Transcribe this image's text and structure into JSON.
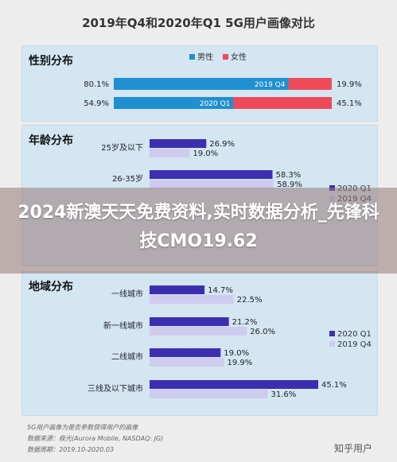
{
  "page_title": "2019年Q4和2020年Q1 5G用户画像对比",
  "colors": {
    "male": "#1f8fd0",
    "female": "#ef4a5a",
    "q1_2020": "#3b2fb0",
    "q4_2019": "#cfcbef",
    "panel_bg": "#d3e6f2"
  },
  "chart_data": [
    {
      "type": "bar",
      "title": "性别分布",
      "categories": [
        "2019 Q4",
        "2020 Q1"
      ],
      "series": [
        {
          "name": "男性",
          "values": [
            80.1,
            54.9
          ]
        },
        {
          "name": "女性",
          "values": [
            19.9,
            45.1
          ]
        }
      ],
      "value_labels": {
        "男性": [
          "80.1%",
          "54.9%"
        ],
        "女性": [
          "19.9%",
          "45.1%"
        ]
      },
      "stacked": true,
      "legend": "top"
    },
    {
      "type": "bar",
      "title": "年龄分布",
      "categories": [
        "25岁及以下",
        "26-35岁"
      ],
      "series": [
        {
          "name": "2020 Q1",
          "values": [
            26.9,
            58.3
          ]
        },
        {
          "name": "2019 Q4",
          "values": [
            19.0,
            58.9
          ]
        }
      ],
      "value_labels": {
        "2020 Q1": [
          "26.9%",
          "58.3%"
        ],
        "2019 Q4": [
          "19.0%",
          "58.9%"
        ]
      },
      "legend": "right"
    },
    {
      "type": "bar",
      "title": "地域分布",
      "categories": [
        "一线城市",
        "新一线城市",
        "二线城市",
        "三线及以下城市"
      ],
      "series": [
        {
          "name": "2020 Q1",
          "values": [
            14.7,
            21.2,
            19.0,
            45.1
          ]
        },
        {
          "name": "2019 Q4",
          "values": [
            22.5,
            26.0,
            19.9,
            31.6
          ]
        }
      ],
      "value_labels": {
        "2020 Q1": [
          "14.7%",
          "21.2%",
          "19.0%",
          "45.1%"
        ],
        "2019 Q4": [
          "22.5%",
          "26.0%",
          "19.9%",
          "31.6%"
        ]
      },
      "legend": "bottom-right"
    }
  ],
  "footer": {
    "line1": "5G用户画像为是否参数获得用户的画像",
    "line2": "数据来源：极光(Aurora Mobile, NASDAQ: JG)",
    "line3": "数据周期：2019.10-2020.03"
  },
  "banner": {
    "text": "2024新澳天天免费资料,实时数据分析_先锋科技CMO19.62"
  },
  "watermark": "知乎用户"
}
